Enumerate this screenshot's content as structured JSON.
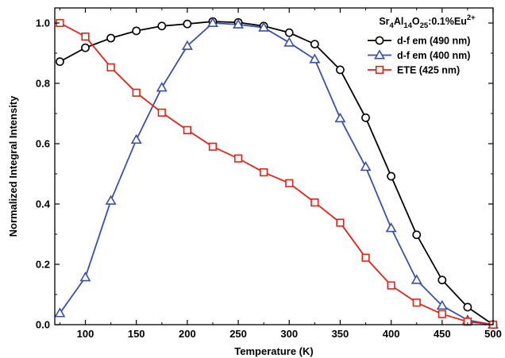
{
  "chart_data": {
    "type": "line",
    "title": "",
    "xlabel": "Temperature (K)",
    "ylabel": "Normalized Integral Intensity",
    "xlim": [
      70,
      500
    ],
    "ylim": [
      0,
      1.05
    ],
    "xticks": [
      100,
      150,
      200,
      250,
      300,
      350,
      400,
      450,
      500
    ],
    "yticks": [
      0.0,
      0.2,
      0.4,
      0.6,
      0.8,
      1.0
    ],
    "ytick_labels": [
      "0.0",
      "0.2",
      "0.4",
      "0.6",
      "0.8",
      "1.0"
    ],
    "grid": false,
    "legend": {
      "placement": "top-right",
      "title_parts": {
        "a": "Sr",
        "sub1": "4",
        "b": "Al",
        "sub2": "14",
        "c": "O",
        "sub3": "25",
        "d": ":0.1%Eu",
        "sup": "2+"
      }
    },
    "x": [
      75,
      100,
      125,
      150,
      175,
      200,
      225,
      250,
      275,
      300,
      325,
      350,
      375,
      400,
      425,
      450,
      475,
      500
    ],
    "series": [
      {
        "name": "d-f em (490 nm)",
        "color": "#000000",
        "marker": "circle",
        "values": [
          0.872,
          0.918,
          0.95,
          0.974,
          0.99,
          0.997,
          1.005,
          1.002,
          0.99,
          0.968,
          0.93,
          0.845,
          0.686,
          0.492,
          0.298,
          0.148,
          0.058,
          0.0
        ]
      },
      {
        "name": "d-f em (400 nm)",
        "color": "#3a4fa8",
        "marker": "triangle",
        "values": [
          0.038,
          0.157,
          0.411,
          0.613,
          0.786,
          0.924,
          1.0,
          0.995,
          0.985,
          0.935,
          0.88,
          0.684,
          0.523,
          0.32,
          0.148,
          0.063,
          0.015,
          0.0
        ]
      },
      {
        "name": "ETE (425 nm)",
        "color": "#e2231a",
        "marker": "square",
        "values": [
          1.0,
          0.955,
          0.853,
          0.769,
          0.703,
          0.645,
          0.59,
          0.551,
          0.505,
          0.469,
          0.405,
          0.338,
          0.222,
          0.13,
          0.073,
          0.035,
          0.01,
          0.0
        ]
      }
    ]
  }
}
